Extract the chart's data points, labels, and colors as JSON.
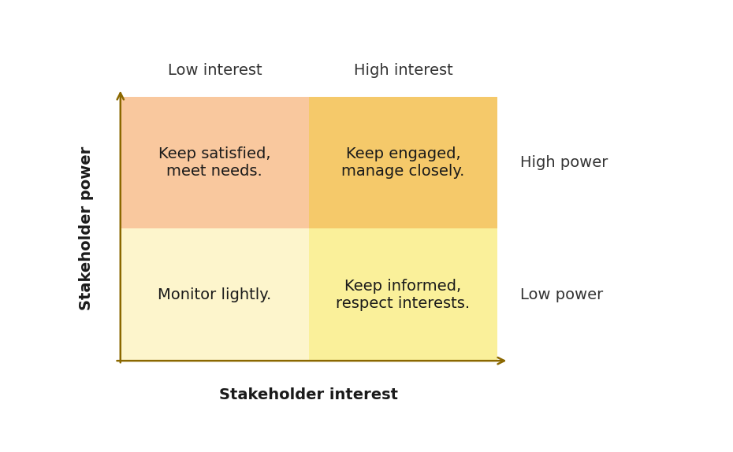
{
  "title_x": "Stakeholder interest",
  "title_y": "Stakeholder power",
  "col_labels": [
    "Low interest",
    "High interest"
  ],
  "row_labels": [
    "High power",
    "Low power"
  ],
  "quadrant_texts": [
    [
      "Keep satisfied,\nmeet needs.",
      "Keep engaged,\nmanage closely."
    ],
    [
      "Monitor lightly.",
      "Keep informed,\nrespect interests."
    ]
  ],
  "quadrant_colors": [
    [
      "#f9c89e",
      "#f5c96a"
    ],
    [
      "#fdf5cc",
      "#faf09a"
    ]
  ],
  "col_label_color": "#333333",
  "row_label_color": "#333333",
  "axis_color": "#8B6800",
  "text_color": "#1a1a1a",
  "background_color": "#ffffff",
  "col_label_fontsize": 14,
  "row_label_fontsize": 14,
  "quadrant_text_fontsize": 14,
  "axis_label_fontsize": 14,
  "figsize": [
    9.3,
    5.74
  ],
  "dpi": 100
}
